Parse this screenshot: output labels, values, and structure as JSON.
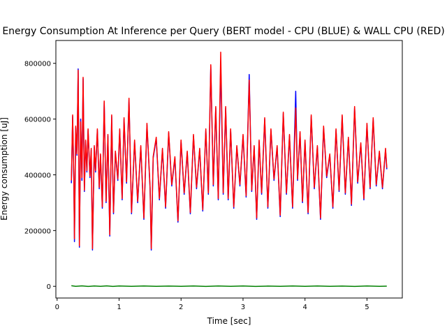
{
  "chart_data": {
    "type": "line",
    "title": "Energy Consumption At Inference per Query (BERT model - CPU (BLUE) & WALL CPU (RED)",
    "xlabel": "Time [sec]",
    "ylabel": "Energy consumption [uJ]",
    "xlim": [
      -0.02,
      5.57
    ],
    "ylim": [
      -42000,
      882000
    ],
    "xticks": [
      0,
      1,
      2,
      3,
      4,
      5
    ],
    "xtick_labels": [
      "0",
      "1",
      "2",
      "3",
      "4",
      "5"
    ],
    "yticks": [
      0,
      200000,
      400000,
      600000,
      800000
    ],
    "ytick_labels": [
      "0",
      "200000",
      "400000",
      "600000",
      "800000"
    ],
    "grid": false,
    "legend": "none",
    "series": [
      {
        "color": "#0000ff",
        "x": [
          0.23,
          0.25,
          0.27,
          0.28,
          0.3,
          0.32,
          0.34,
          0.36,
          0.38,
          0.4,
          0.42,
          0.44,
          0.46,
          0.48,
          0.5,
          0.53,
          0.55,
          0.57,
          0.6,
          0.62,
          0.65,
          0.68,
          0.7,
          0.73,
          0.76,
          0.79,
          0.82,
          0.85,
          0.88,
          0.91,
          0.94,
          0.98,
          1.01,
          1.05,
          1.08,
          1.12,
          1.16,
          1.2,
          1.25,
          1.3,
          1.35,
          1.4,
          1.45,
          1.5,
          1.52,
          1.55,
          1.6,
          1.65,
          1.7,
          1.75,
          1.8,
          1.85,
          1.9,
          1.95,
          2.0,
          2.05,
          2.1,
          2.15,
          2.2,
          2.25,
          2.3,
          2.35,
          2.4,
          2.44,
          2.48,
          2.52,
          2.56,
          2.6,
          2.64,
          2.68,
          2.72,
          2.76,
          2.8,
          2.85,
          2.9,
          2.95,
          3.0,
          3.05,
          3.1,
          3.14,
          3.18,
          3.22,
          3.26,
          3.3,
          3.35,
          3.4,
          3.45,
          3.5,
          3.55,
          3.6,
          3.65,
          3.7,
          3.75,
          3.8,
          3.85,
          3.88,
          3.92,
          3.96,
          4.0,
          4.05,
          4.1,
          4.15,
          4.2,
          4.25,
          4.3,
          4.35,
          4.4,
          4.45,
          4.5,
          4.55,
          4.6,
          4.65,
          4.7,
          4.75,
          4.8,
          4.85,
          4.9,
          4.95,
          5.0,
          5.05,
          5.1,
          5.15,
          5.2,
          5.25,
          5.3,
          5.32
        ],
        "y": [
          370000,
          610000,
          380000,
          160000,
          570000,
          470000,
          780000,
          140000,
          600000,
          380000,
          745000,
          340000,
          520000,
          410000,
          560000,
          390000,
          490000,
          130000,
          500000,
          410000,
          560000,
          350000,
          470000,
          280000,
          660000,
          300000,
          540000,
          180000,
          610000,
          260000,
          480000,
          380000,
          560000,
          310000,
          600000,
          370000,
          670000,
          260000,
          520000,
          300000,
          500000,
          240000,
          580000,
          350000,
          130000,
          460000,
          530000,
          310000,
          490000,
          280000,
          550000,
          360000,
          460000,
          230000,
          520000,
          330000,
          480000,
          260000,
          540000,
          350000,
          490000,
          270000,
          560000,
          330000,
          790000,
          360000,
          640000,
          310000,
          800000,
          330000,
          640000,
          310000,
          560000,
          280000,
          500000,
          360000,
          540000,
          320000,
          760000,
          340000,
          500000,
          240000,
          520000,
          330000,
          600000,
          280000,
          560000,
          380000,
          500000,
          250000,
          620000,
          330000,
          540000,
          280000,
          700000,
          380000,
          550000,
          300000,
          520000,
          260000,
          610000,
          350000,
          500000,
          240000,
          570000,
          390000,
          470000,
          280000,
          560000,
          340000,
          610000,
          330000,
          530000,
          290000,
          640000,
          370000,
          510000,
          310000,
          580000,
          350000,
          600000,
          360000,
          480000,
          350000,
          490000,
          420000
        ],
        "stroke_width": 1.5
      },
      {
        "color": "#ff0000",
        "x": [
          0.23,
          0.25,
          0.27,
          0.28,
          0.3,
          0.32,
          0.34,
          0.36,
          0.38,
          0.4,
          0.42,
          0.44,
          0.46,
          0.48,
          0.5,
          0.53,
          0.55,
          0.57,
          0.6,
          0.62,
          0.65,
          0.68,
          0.7,
          0.73,
          0.76,
          0.79,
          0.82,
          0.85,
          0.88,
          0.91,
          0.94,
          0.98,
          1.01,
          1.05,
          1.08,
          1.12,
          1.16,
          1.2,
          1.25,
          1.3,
          1.35,
          1.4,
          1.45,
          1.5,
          1.52,
          1.55,
          1.6,
          1.65,
          1.7,
          1.75,
          1.8,
          1.85,
          1.9,
          1.95,
          2.0,
          2.05,
          2.1,
          2.15,
          2.2,
          2.25,
          2.3,
          2.35,
          2.4,
          2.44,
          2.48,
          2.52,
          2.56,
          2.6,
          2.64,
          2.68,
          2.72,
          2.76,
          2.8,
          2.85,
          2.9,
          2.95,
          3.0,
          3.05,
          3.1,
          3.14,
          3.18,
          3.22,
          3.26,
          3.3,
          3.35,
          3.4,
          3.45,
          3.5,
          3.55,
          3.6,
          3.65,
          3.7,
          3.75,
          3.8,
          3.85,
          3.88,
          3.92,
          3.96,
          4.0,
          4.05,
          4.1,
          4.15,
          4.2,
          4.25,
          4.3,
          4.35,
          4.4,
          4.45,
          4.5,
          4.55,
          4.6,
          4.65,
          4.7,
          4.75,
          4.8,
          4.85,
          4.9,
          4.95,
          5.0,
          5.05,
          5.1,
          5.15,
          5.2,
          5.25,
          5.3,
          5.32
        ],
        "y": [
          380000,
          615000,
          390000,
          170000,
          575000,
          475000,
          775000,
          145000,
          590000,
          390000,
          750000,
          345000,
          525000,
          415000,
          565000,
          395000,
          495000,
          135000,
          505000,
          415000,
          565000,
          355000,
          475000,
          285000,
          665000,
          305000,
          545000,
          185000,
          615000,
          265000,
          485000,
          385000,
          565000,
          315000,
          605000,
          375000,
          675000,
          265000,
          525000,
          305000,
          505000,
          245000,
          585000,
          355000,
          135000,
          465000,
          535000,
          315000,
          495000,
          285000,
          555000,
          365000,
          465000,
          235000,
          525000,
          335000,
          485000,
          265000,
          545000,
          355000,
          495000,
          275000,
          565000,
          335000,
          795000,
          365000,
          645000,
          315000,
          840000,
          335000,
          645000,
          315000,
          565000,
          285000,
          505000,
          365000,
          545000,
          325000,
          740000,
          345000,
          505000,
          245000,
          525000,
          335000,
          605000,
          285000,
          565000,
          385000,
          505000,
          255000,
          625000,
          335000,
          545000,
          285000,
          640000,
          385000,
          555000,
          305000,
          525000,
          265000,
          615000,
          355000,
          505000,
          245000,
          575000,
          395000,
          475000,
          285000,
          565000,
          345000,
          615000,
          335000,
          535000,
          295000,
          645000,
          375000,
          515000,
          315000,
          585000,
          355000,
          605000,
          365000,
          485000,
          355000,
          495000,
          425000
        ],
        "stroke_width": 1.5
      },
      {
        "color": "#008000",
        "x": [
          0.23,
          0.3,
          0.4,
          0.5,
          0.6,
          0.7,
          0.8,
          0.9,
          1.0,
          1.2,
          1.4,
          1.6,
          1.8,
          2.0,
          2.2,
          2.4,
          2.6,
          2.8,
          3.0,
          3.2,
          3.4,
          3.6,
          3.8,
          4.0,
          4.2,
          4.4,
          4.6,
          4.8,
          5.0,
          5.2,
          5.32
        ],
        "y": [
          2000,
          0,
          1500,
          -500,
          1000,
          0,
          1500,
          -500,
          1000,
          0,
          1200,
          -300,
          900,
          0,
          1100,
          -400,
          1000,
          0,
          1200,
          -500,
          900,
          0,
          1000,
          -300,
          1100,
          0,
          900,
          -400,
          1000,
          0,
          500
        ],
        "stroke_width": 1.5
      }
    ]
  }
}
